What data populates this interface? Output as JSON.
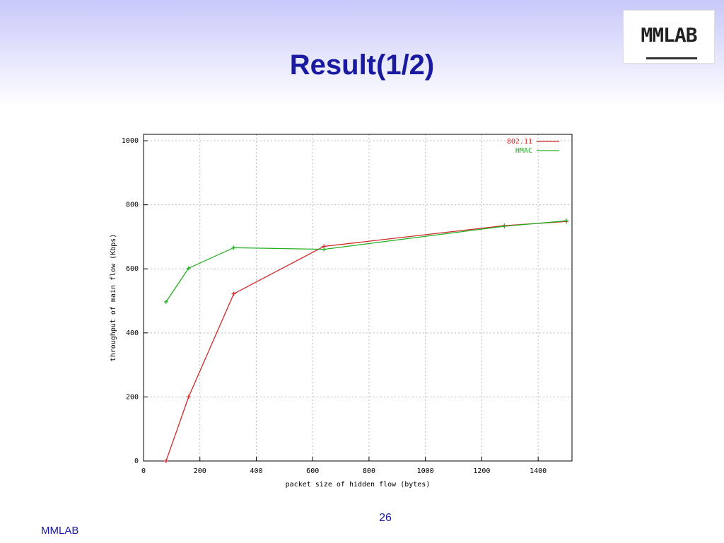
{
  "slide": {
    "title": "Result(1/2)",
    "logo": "MMLAB",
    "page_number": "26",
    "footer": "MMLAB"
  },
  "chart_data": {
    "type": "line",
    "x_label": "packet size of hidden flow (bytes)",
    "y_label": "throughput of main flow (Kbps)",
    "x": [
      80,
      160,
      320,
      640,
      1280,
      1500
    ],
    "series": [
      {
        "name": "802.11",
        "color": "#d02828",
        "values": [
          0,
          200,
          522,
          670,
          735,
          748
        ]
      },
      {
        "name": "HMAC",
        "color": "#20b020",
        "values": [
          497,
          602,
          666,
          661,
          733,
          750
        ]
      }
    ],
    "xlim": [
      0,
      1520
    ],
    "xticks": [
      0,
      200,
      400,
      600,
      800,
      1000,
      1200,
      1400
    ],
    "ylim": [
      0,
      1020
    ],
    "yticks": [
      0,
      200,
      400,
      600,
      800,
      1000
    ],
    "grid": true,
    "legend": "upper right"
  }
}
